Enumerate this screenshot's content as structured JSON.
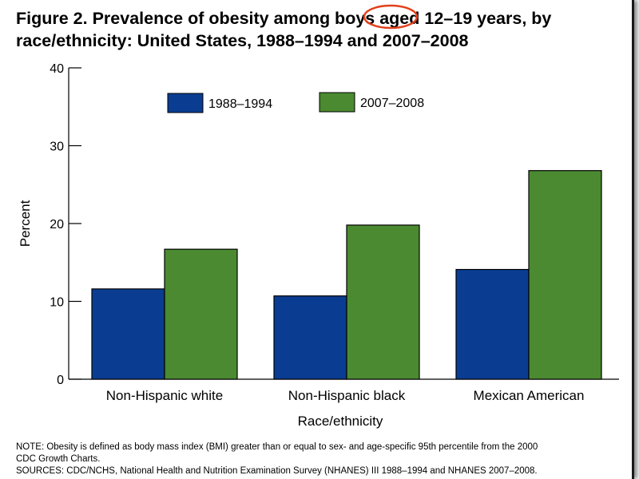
{
  "title": "Figure 2. Prevalence of obesity among boys aged 12–19 years, by race/ethnicity: United States, 1988–1994 and 2007–2008",
  "highlight_color": "#e2401b",
  "notes": [
    "NOTE: Obesity is defined as body mass index (BMI) greater than or equal to sex- and age-specific 95th percentile from the 2000",
    "CDC Growth Charts.",
    "SOURCES: CDC/NCHS, National Health and Nutrition Examination Survey (NHANES) III 1988–1994 and NHANES 2007–2008."
  ],
  "chart_data": {
    "type": "bar",
    "title": "",
    "xlabel": "Race/ethnicity",
    "ylabel": "Percent",
    "ylim": [
      0,
      40
    ],
    "yticks": [
      0,
      10,
      20,
      30,
      40
    ],
    "grid": false,
    "legend_position": "top-center",
    "categories": [
      "Non-Hispanic white",
      "Non-Hispanic black",
      "Mexican American"
    ],
    "series": [
      {
        "name": "1988–1994",
        "color": "#0a3d91",
        "values": [
          11.6,
          10.7,
          14.1
        ]
      },
      {
        "name": "2007–2008",
        "color": "#4b8a31",
        "values": [
          16.7,
          19.8,
          26.8
        ]
      }
    ]
  }
}
